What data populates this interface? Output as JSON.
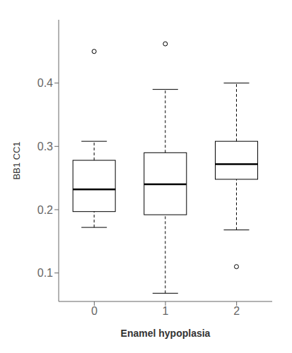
{
  "chart_data": {
    "type": "box",
    "xlabel": "Enamel hypoplasia",
    "ylabel": "BB1 CC1",
    "categories": [
      "0",
      "1",
      "2"
    ],
    "boxes": [
      {
        "q1": 0.197,
        "median": 0.232,
        "q3": 0.278,
        "whisker_low": 0.172,
        "whisker_high": 0.308,
        "outliers": [
          0.45
        ]
      },
      {
        "q1": 0.192,
        "median": 0.24,
        "q3": 0.29,
        "whisker_low": 0.068,
        "whisker_high": 0.39,
        "outliers": [
          0.462
        ]
      },
      {
        "q1": 0.248,
        "median": 0.272,
        "q3": 0.308,
        "whisker_low": 0.168,
        "whisker_high": 0.4,
        "outliers": [
          0.11
        ]
      }
    ],
    "ylim": [
      0.055,
      0.5
    ],
    "yticks": [
      0.1,
      0.2,
      0.3,
      0.4
    ],
    "color": "black"
  }
}
